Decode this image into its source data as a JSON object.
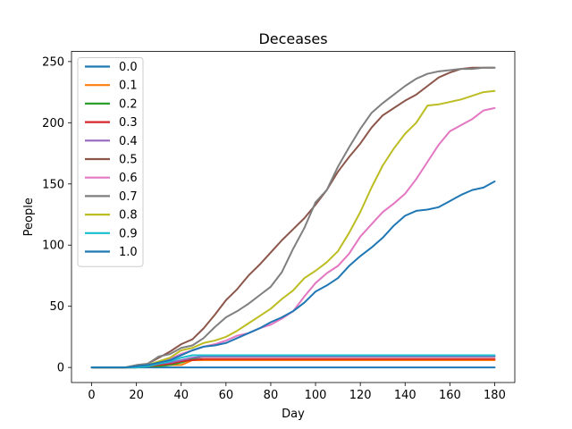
{
  "chart_data": {
    "type": "line",
    "title": "Deceases",
    "xlabel": "Day",
    "ylabel": "People",
    "xlim": [
      -9,
      189
    ],
    "ylim": [
      -12.3,
      258.3
    ],
    "xticks": [
      0,
      20,
      40,
      60,
      80,
      100,
      120,
      140,
      160,
      180
    ],
    "yticks": [
      0,
      50,
      100,
      150,
      200,
      250
    ],
    "grid": false,
    "legend_position": "upper-left",
    "x": [
      0,
      10,
      15,
      20,
      25,
      30,
      35,
      40,
      45,
      50,
      55,
      60,
      65,
      70,
      75,
      80,
      85,
      90,
      95,
      100,
      105,
      110,
      115,
      120,
      125,
      130,
      135,
      140,
      145,
      150,
      155,
      160,
      165,
      170,
      175,
      180
    ],
    "series": [
      {
        "name": "0.0",
        "color": "#1f77b4",
        "values": [
          0,
          0,
          0,
          0,
          0,
          0,
          0,
          0,
          0,
          0,
          0,
          0,
          0,
          0,
          0,
          0,
          0,
          0,
          0,
          0,
          0,
          0,
          0,
          0,
          0,
          0,
          0,
          0,
          0,
          0,
          0,
          0,
          0,
          0,
          0,
          0
        ]
      },
      {
        "name": "0.1",
        "color": "#ff7f0e",
        "values": [
          0,
          0,
          0,
          1,
          1,
          2,
          2,
          2,
          6,
          6,
          6,
          6,
          6,
          6,
          6,
          6,
          6,
          6,
          6,
          6,
          6,
          6,
          6,
          6,
          6,
          6,
          6,
          6,
          6,
          6,
          6,
          6,
          6,
          6,
          6,
          6
        ]
      },
      {
        "name": "0.2",
        "color": "#2ca02c",
        "values": [
          0,
          0,
          0,
          0,
          1,
          1,
          2,
          4,
          7,
          9,
          9,
          9,
          9,
          9,
          9,
          9,
          9,
          9,
          9,
          9,
          9,
          9,
          9,
          9,
          9,
          9,
          9,
          9,
          9,
          9,
          9,
          9,
          9,
          9,
          9,
          9
        ]
      },
      {
        "name": "0.3",
        "color": "#d62728",
        "values": [
          0,
          0,
          0,
          0,
          1,
          2,
          3,
          5,
          6,
          7,
          7,
          7,
          7,
          7,
          7,
          7,
          7,
          7,
          7,
          7,
          7,
          7,
          7,
          7,
          7,
          7,
          7,
          7,
          7,
          7,
          7,
          7,
          7,
          7,
          7,
          7
        ]
      },
      {
        "name": "0.4",
        "color": "#9467bd",
        "values": [
          0,
          0,
          0,
          1,
          2,
          3,
          4,
          6,
          8,
          9,
          9,
          9,
          9,
          9,
          9,
          9,
          9,
          9,
          9,
          9,
          9,
          9,
          9,
          9,
          9,
          9,
          9,
          9,
          9,
          9,
          9,
          9,
          9,
          9,
          9,
          9
        ]
      },
      {
        "name": "0.5",
        "color": "#8c564b",
        "values": [
          0,
          0,
          0,
          1,
          3,
          8,
          13,
          19,
          23,
          32,
          43,
          55,
          64,
          75,
          84,
          94,
          104,
          113,
          122,
          133,
          145,
          160,
          172,
          183,
          196,
          206,
          212,
          218,
          223,
          230,
          237,
          241,
          244,
          245,
          245,
          245
        ]
      },
      {
        "name": "0.6",
        "color": "#e377c2",
        "values": [
          0,
          0,
          0,
          1,
          2,
          4,
          7,
          11,
          14,
          17,
          19,
          22,
          26,
          28,
          32,
          35,
          40,
          46,
          58,
          69,
          77,
          83,
          93,
          107,
          117,
          127,
          134,
          142,
          154,
          168,
          182,
          193,
          198,
          203,
          210,
          212
        ]
      },
      {
        "name": "0.7",
        "color": "#7f7f7f",
        "values": [
          0,
          0,
          0,
          2,
          3,
          9,
          11,
          16,
          18,
          24,
          33,
          41,
          46,
          52,
          59,
          66,
          78,
          97,
          114,
          135,
          145,
          164,
          180,
          195,
          208,
          216,
          223,
          230,
          236,
          240,
          242,
          243,
          244,
          244,
          245,
          245
        ]
      },
      {
        "name": "0.8",
        "color": "#bcbd22",
        "values": [
          0,
          0,
          0,
          1,
          2,
          5,
          8,
          14,
          16,
          20,
          22,
          25,
          30,
          36,
          42,
          48,
          56,
          63,
          73,
          79,
          86,
          95,
          110,
          127,
          147,
          165,
          179,
          191,
          200,
          214,
          215,
          217,
          219,
          222,
          225,
          226
        ]
      },
      {
        "name": "0.9",
        "color": "#17becf",
        "values": [
          0,
          0,
          0,
          0,
          1,
          3,
          5,
          8,
          10,
          10,
          10,
          10,
          10,
          10,
          10,
          10,
          10,
          10,
          10,
          10,
          10,
          10,
          10,
          10,
          10,
          10,
          10,
          10,
          10,
          10,
          10,
          10,
          10,
          10,
          10,
          10
        ]
      },
      {
        "name": "1.0",
        "color": "#1f77b4",
        "values": [
          0,
          0,
          0,
          1,
          2,
          4,
          6,
          10,
          14,
          17,
          18,
          20,
          24,
          28,
          32,
          37,
          41,
          46,
          53,
          62,
          67,
          73,
          83,
          91,
          98,
          106,
          116,
          124,
          128,
          129,
          131,
          136,
          141,
          145,
          147,
          152
        ]
      }
    ]
  }
}
